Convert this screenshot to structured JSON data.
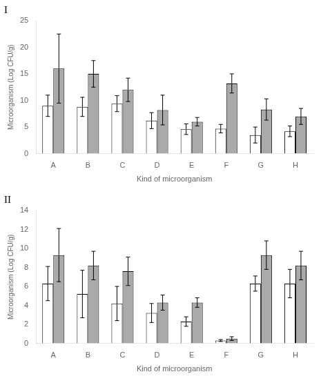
{
  "chart_data": [
    {
      "type": "bar",
      "title": "I",
      "categories": [
        "A",
        "B",
        "C",
        "D",
        "E",
        "F",
        "G",
        "H"
      ],
      "series": [
        {
          "color": "#ffffff",
          "values": [
            9.0,
            8.8,
            9.4,
            6.2,
            4.6,
            4.7,
            3.5,
            4.2
          ],
          "errors": [
            2.0,
            1.8,
            1.5,
            1.5,
            1.0,
            0.8,
            1.5,
            1.0
          ]
        },
        {
          "color": "#aaaaaa",
          "values": [
            16.0,
            15.0,
            12.0,
            8.2,
            6.0,
            13.2,
            8.3,
            7.0
          ],
          "errors": [
            6.5,
            2.5,
            2.2,
            2.8,
            0.8,
            1.8,
            2.0,
            1.5
          ]
        }
      ],
      "ylim": [
        0,
        25
      ],
      "yticks": [
        0,
        5,
        10,
        15,
        20,
        25
      ],
      "ylabel": "Microorganism (Log CFU/g)",
      "xlabel": "Kind of microorganism",
      "grid": false
    },
    {
      "type": "bar",
      "title": "II",
      "categories": [
        "A",
        "B",
        "C",
        "D",
        "E",
        "F",
        "G",
        "H"
      ],
      "series": [
        {
          "color": "#ffffff",
          "values": [
            6.3,
            5.2,
            4.2,
            3.2,
            2.3,
            0.3,
            6.3,
            6.3
          ],
          "errors": [
            1.8,
            2.5,
            1.8,
            1.0,
            0.5,
            0.1,
            0.8,
            1.5
          ]
        },
        {
          "color": "#aaaaaa",
          "values": [
            9.3,
            8.2,
            7.6,
            4.3,
            4.3,
            0.5,
            9.3,
            8.2
          ],
          "errors": [
            2.8,
            1.5,
            1.5,
            0.8,
            0.5,
            0.2,
            1.5,
            1.5
          ]
        }
      ],
      "ylim": [
        0,
        14
      ],
      "yticks": [
        0,
        2,
        4,
        6,
        8,
        10,
        12,
        14
      ],
      "ylabel": "Microorganism (Log CFU/g)",
      "xlabel": "Kind of microorganism",
      "grid": false
    }
  ]
}
